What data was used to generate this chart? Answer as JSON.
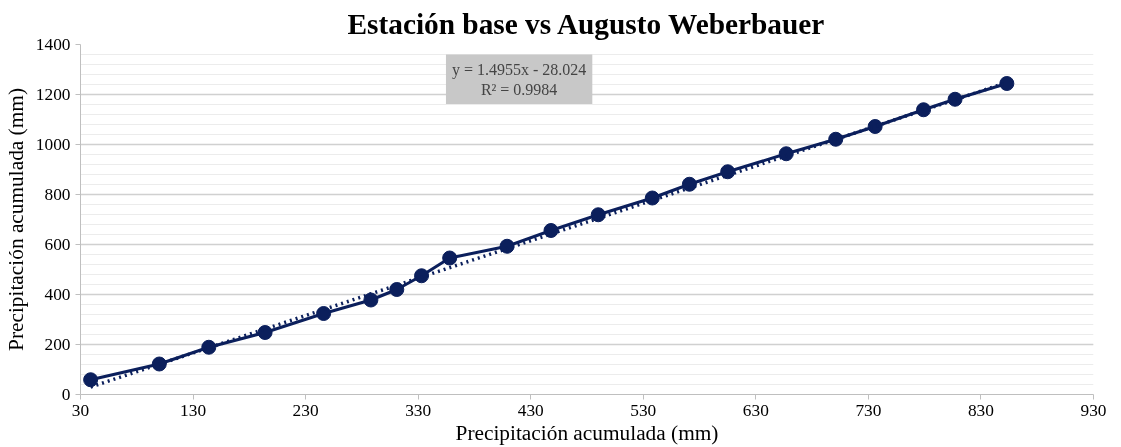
{
  "chart_data": {
    "type": "line",
    "title": "Estación base vs Augusto Weberbauer",
    "xlabel": "Precipitación acumulada (mm)",
    "ylabel": "Precipitación acumulada (mm)",
    "series": [
      {
        "color": "#0b1f5c",
        "marker": "circle",
        "line_style": "solid",
        "x": [
          39,
          100,
          144,
          194,
          246,
          288,
          311,
          333,
          358,
          409,
          448,
          490,
          538,
          571,
          605,
          657,
          701,
          736,
          779,
          807,
          853
        ],
        "values": [
          59,
          122,
          189,
          248,
          324,
          378,
          420,
          475,
          546,
          593,
          656,
          719,
          786,
          841,
          891,
          963,
          1021,
          1072,
          1139,
          1181,
          1244
        ]
      },
      {
        "type": "line",
        "color": "#0b1f5c",
        "marker": "none",
        "line_style": "dotted",
        "x": [
          39,
          853
        ],
        "values": [
          30,
          1248
        ]
      }
    ],
    "annotations": [
      "y = 1.4955x - 28.024\nR² = 0.9984"
    ],
    "xlim": [
      30,
      930
    ],
    "xticks": [
      30,
      130,
      230,
      330,
      430,
      530,
      630,
      730,
      830,
      930
    ],
    "ylim": [
      0,
      1400
    ],
    "yticks": [
      0,
      200,
      400,
      600,
      800,
      1000,
      1200,
      1400
    ],
    "grid": "y"
  }
}
